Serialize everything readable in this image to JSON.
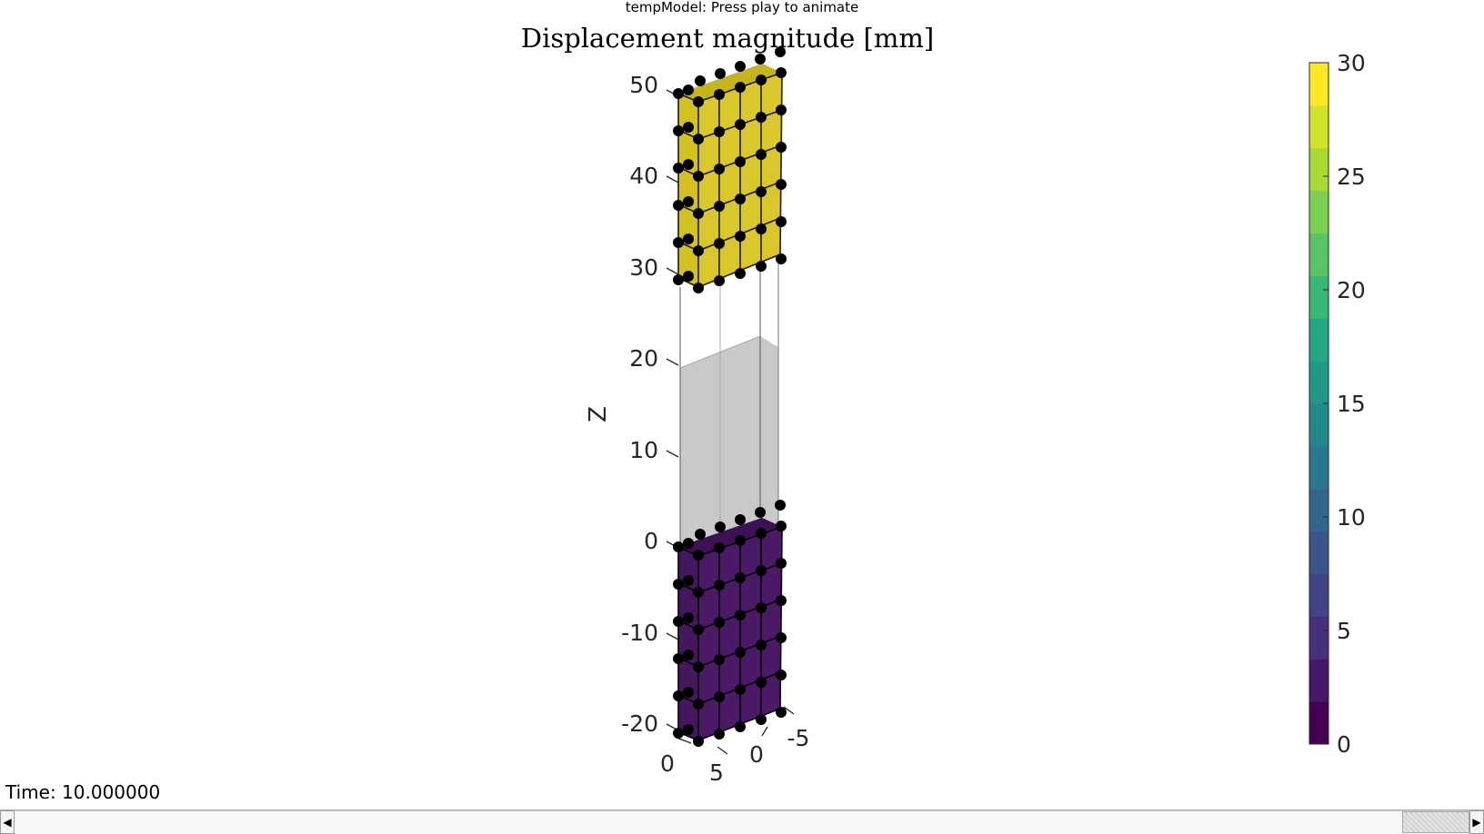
{
  "window": {
    "title": "tempModel: Press play to animate"
  },
  "plot": {
    "title": "Displacement magnitude [mm]",
    "zlabel": "Z",
    "z_ticks": [
      "50",
      "40",
      "30",
      "20",
      "10",
      "0",
      "-10",
      "-20"
    ],
    "x_ticks": [
      "0",
      "5"
    ],
    "y_ticks": [
      "0",
      "-5"
    ],
    "colorbar": {
      "ticks": [
        "30",
        "25",
        "20",
        "15",
        "10",
        "5",
        "0"
      ],
      "range": [
        0,
        30
      ],
      "colormap": "viridis",
      "levels": 16
    },
    "colors": {
      "top_block": "#d3c120",
      "bottom_block": "#45175f",
      "gap_fill": "#c0c0c0",
      "node": "#000000"
    }
  },
  "status": {
    "time_label": "Time: 10.000000"
  },
  "scrollbar": {
    "left_arrow": "◀",
    "right_arrow": "▶"
  }
}
